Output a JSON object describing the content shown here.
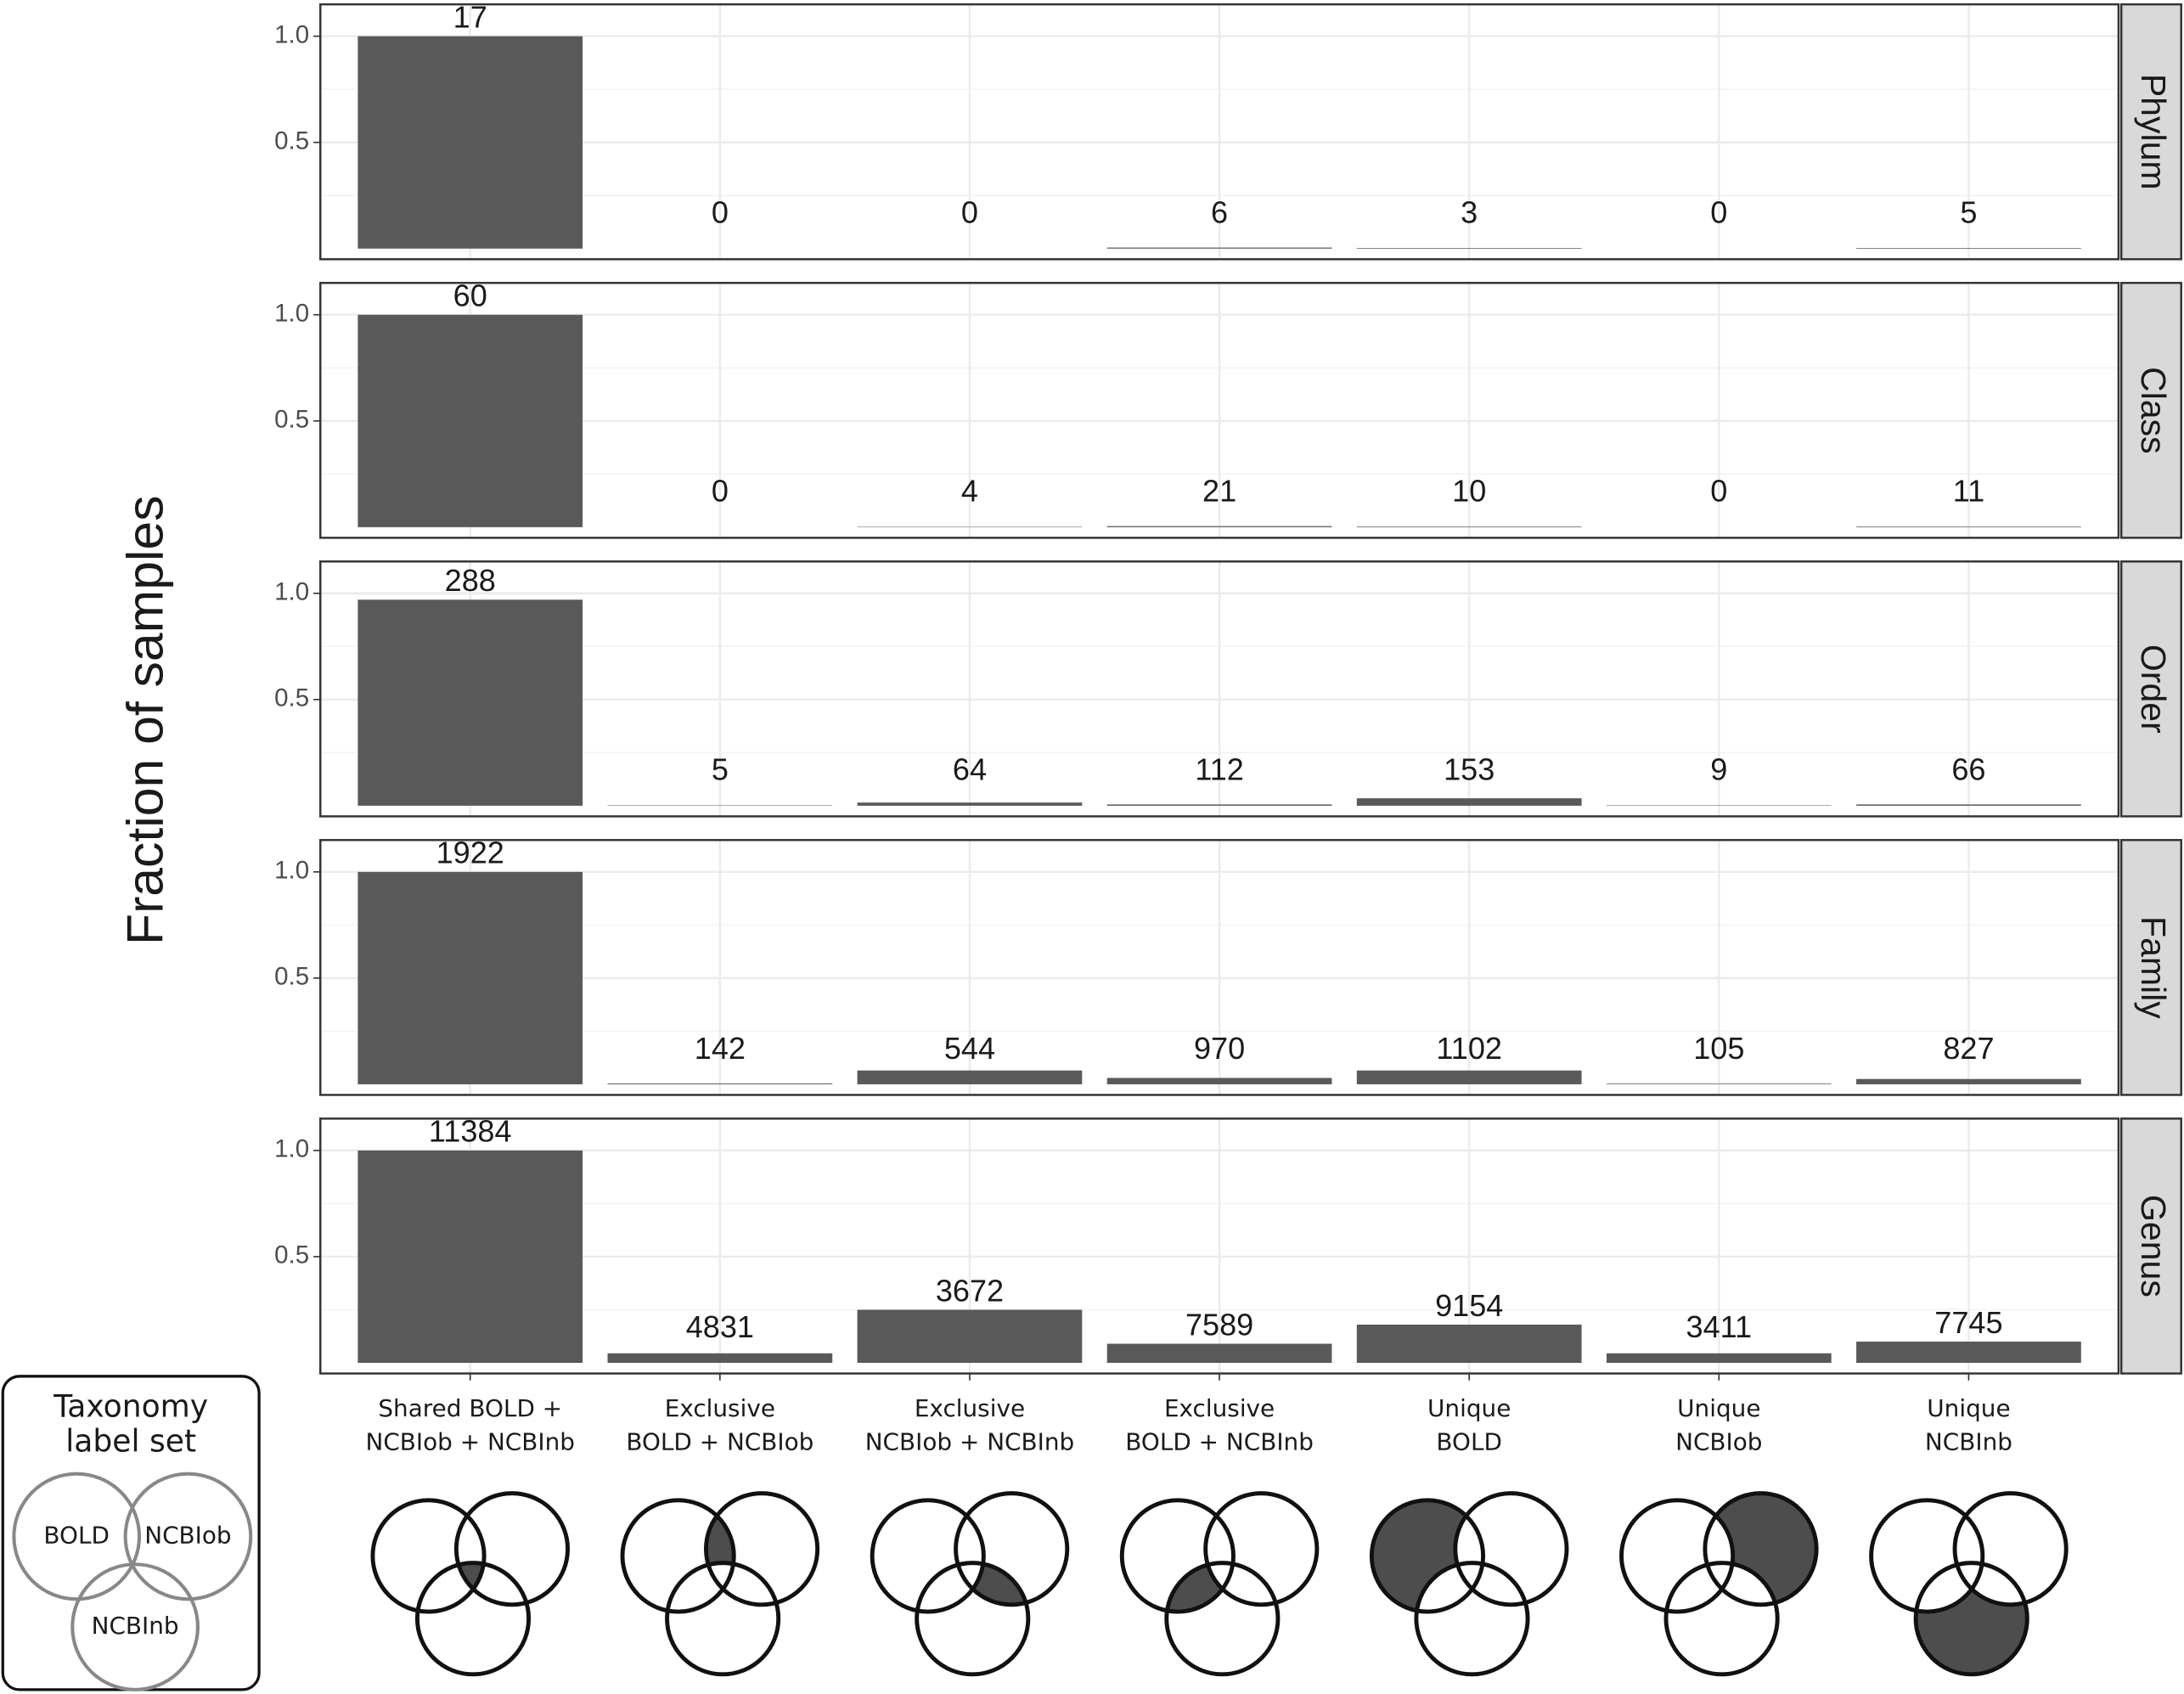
{
  "chart_data": {
    "type": "bar",
    "ylabel": "Fraction of samples",
    "color": "#595959",
    "grid": true,
    "ylim": [
      -0.05,
      1.15
    ],
    "yticks": [
      0.5,
      {
        "value": 1,
        "label": "1.0"
      }
    ],
    "minor_yticks": [
      0.25,
      0.75
    ],
    "categories": [
      [
        "Shared BOLD +",
        "NCBIob + NCBInb"
      ],
      [
        "Exclusive",
        "BOLD + NCBIob"
      ],
      [
        "Exclusive",
        "NCBIob + NCBInb"
      ],
      [
        "Exclusive",
        "BOLD + NCBInb"
      ],
      [
        "Unique",
        "BOLD"
      ],
      [
        "Unique",
        "NCBIob"
      ],
      [
        "Unique",
        "NCBInb"
      ]
    ],
    "facets": [
      {
        "name": "Phylum",
        "values": [
          1.0,
          0,
          0,
          0.005,
          0.003,
          0,
          0.003
        ],
        "counts": [
          17,
          0,
          0,
          6,
          3,
          0,
          5
        ]
      },
      {
        "name": "Class",
        "values": [
          1.0,
          0,
          0.002,
          0.005,
          0.003,
          0,
          0.003
        ],
        "counts": [
          60,
          0,
          4,
          21,
          10,
          0,
          11
        ]
      },
      {
        "name": "Order",
        "values": [
          0.97,
          0.002,
          0.015,
          0.006,
          0.035,
          0.002,
          0.006
        ],
        "counts": [
          288,
          5,
          64,
          112,
          153,
          9,
          66
        ]
      },
      {
        "name": "Family",
        "values": [
          1.0,
          0.004,
          0.065,
          0.03,
          0.065,
          0.003,
          0.025
        ],
        "counts": [
          1922,
          142,
          544,
          970,
          1102,
          105,
          827
        ]
      },
      {
        "name": "Genus",
        "values": [
          1.0,
          0.045,
          0.25,
          0.09,
          0.18,
          0.045,
          0.1
        ],
        "counts": [
          11384,
          4831,
          3672,
          7589,
          9154,
          3411,
          7745
        ]
      }
    ],
    "venn_legend": {
      "title": [
        "Taxonomy",
        "label set"
      ],
      "sets": [
        "BOLD",
        "NCBIob",
        "NCBInb"
      ]
    }
  }
}
